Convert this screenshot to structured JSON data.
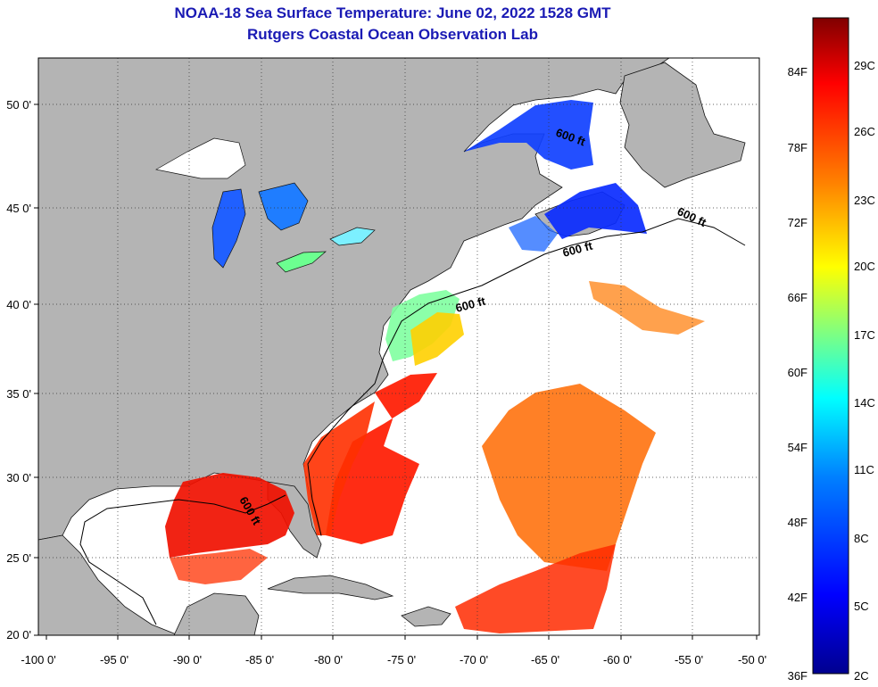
{
  "header": {
    "title": "NOAA-18 Sea Surface Temperature:  June 02, 2022 1528 GMT",
    "subtitle": "Rutgers Coastal Ocean Observation Lab"
  },
  "map": {
    "lon_labels": [
      "-100 0'",
      "-95 0'",
      "-90 0'",
      "-85 0'",
      "-80 0'",
      "-75 0'",
      "-70 0'",
      "-65 0'",
      "-60 0'",
      "-55 0'",
      "-50 0'"
    ],
    "lat_labels": [
      "50 0'",
      "45 0'",
      "40 0'",
      "35 0'",
      "30 0'",
      "25 0'",
      "20 0'"
    ],
    "contour_label": "600 ft",
    "land_color": "#b4b4b4",
    "cloud_color": "#ffffff",
    "grid": "dotted"
  },
  "colorbar": {
    "f_labels": [
      "84F",
      "78F",
      "72F",
      "66F",
      "60F",
      "54F",
      "48F",
      "42F",
      "36F"
    ],
    "c_labels": [
      "29C",
      "26C",
      "23C",
      "20C",
      "17C",
      "14C",
      "11C",
      "8C",
      "5C",
      "2C"
    ],
    "colors": [
      "#00008f",
      "#0000ff",
      "#0080ff",
      "#00ffff",
      "#80ff80",
      "#ffff00",
      "#ff8000",
      "#ff0000",
      "#800000"
    ]
  }
}
